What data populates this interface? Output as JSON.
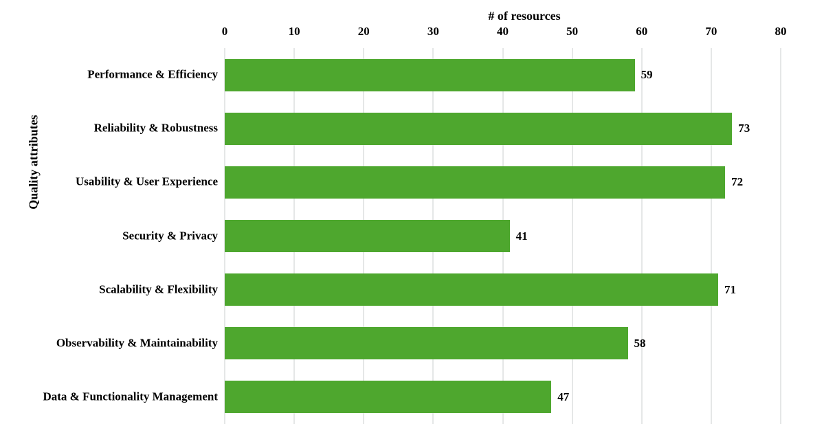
{
  "chart_data": {
    "type": "bar",
    "orientation": "horizontal",
    "title": "# of resources",
    "xlabel": "# of resources",
    "ylabel": "Quality attributes",
    "categories": [
      "Performance & Efficiency",
      "Reliability & Robustness",
      "Usability & User Experience",
      "Security & Privacy",
      "Scalability & Flexibility",
      "Observability & Maintainability",
      "Data & Functionality Management"
    ],
    "values": [
      59,
      73,
      72,
      41,
      71,
      58,
      47
    ],
    "xlim": [
      0,
      80
    ],
    "xticks": [
      0,
      10,
      20,
      30,
      40,
      50,
      60,
      70,
      80
    ],
    "grid": true,
    "legend": false,
    "bar_color": "#4ea72e",
    "gridline_color": "#e5e7e7",
    "text_color": "#000000",
    "background_color": "#ffffff"
  }
}
